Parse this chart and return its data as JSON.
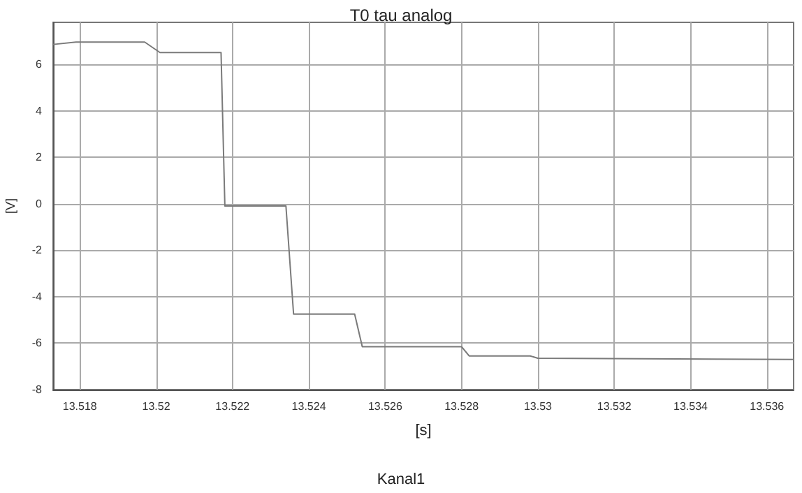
{
  "chart_data": {
    "type": "line",
    "title": "T0 tau analog",
    "xlabel": "[s]",
    "ylabel": "[V]",
    "annotations": [
      "Kanal1"
    ],
    "x": [
      13.5173,
      13.5179,
      13.5197,
      13.5201,
      13.5217,
      13.5218,
      13.5234,
      13.5236,
      13.5252,
      13.5254,
      13.528,
      13.5282,
      13.5298,
      13.53,
      13.5367
    ],
    "series": [
      {
        "color": "#7a7a7a",
        "values": [
          6.85,
          6.95,
          6.95,
          6.5,
          6.5,
          -0.1,
          -0.1,
          -4.75,
          -4.75,
          -6.15,
          -6.15,
          -6.55,
          -6.55,
          -6.65,
          -6.7
        ]
      }
    ],
    "xlim": [
      13.5173,
      13.5367
    ],
    "xticks": [
      13.518,
      13.52,
      13.522,
      13.524,
      13.526,
      13.528,
      13.53,
      13.532,
      13.534,
      13.536
    ],
    "ylim": [
      -8,
      7.8
    ],
    "yticks": [
      -8,
      -6,
      -4,
      -2,
      0,
      2,
      4,
      6
    ],
    "grid": true,
    "marker": "none",
    "line_style": "solid"
  }
}
